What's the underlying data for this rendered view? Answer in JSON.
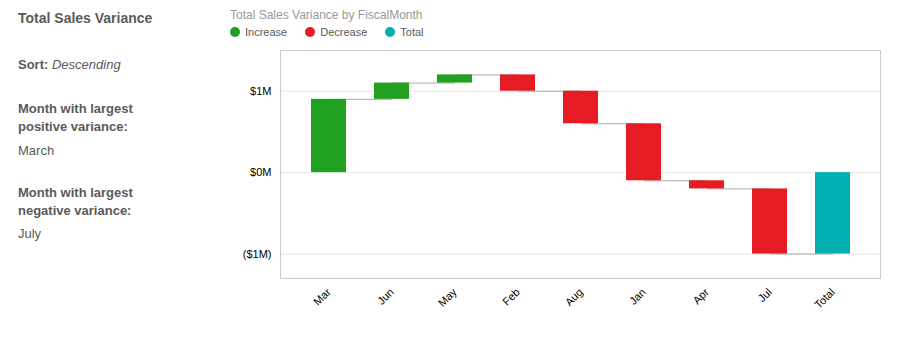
{
  "chart_data": {
    "type": "waterfall",
    "title": "Total Sales Variance by FiscalMonth",
    "annotations": [
      "Total Sales Variance",
      "Sort:",
      "Descending",
      "Month with largest\npositive variance:",
      "March",
      "Month with largest\nnegative variance:",
      "July"
    ],
    "categories": [
      "Mar",
      "Jun",
      "May",
      "Feb",
      "Aug",
      "Jan",
      "Apr",
      "Jul",
      "Total"
    ],
    "series": [
      {
        "name": "Increase",
        "type": "waterfall",
        "color": "#21a121",
        "values": [
          900000,
          200000,
          100000,
          null,
          null,
          null,
          null,
          null,
          null
        ]
      },
      {
        "name": "Decrease",
        "type": "waterfall",
        "color": "#e61c24",
        "values": [
          null,
          null,
          null,
          -200000,
          -400000,
          -700000,
          -100000,
          -800000,
          null
        ]
      },
      {
        "name": "Total",
        "type": "bar",
        "color": "#00b0b0",
        "values": [
          null,
          null,
          null,
          null,
          null,
          null,
          null,
          null,
          -1000000
        ]
      }
    ],
    "ylim": [
      -1300000,
      1500000
    ],
    "yticks": [
      {
        "value": -1000000,
        "label": "($1M)"
      },
      {
        "value": 0,
        "label": "$0M"
      },
      {
        "value": 1000000,
        "label": "$1M"
      }
    ],
    "grid": true,
    "legend": "upper left"
  }
}
